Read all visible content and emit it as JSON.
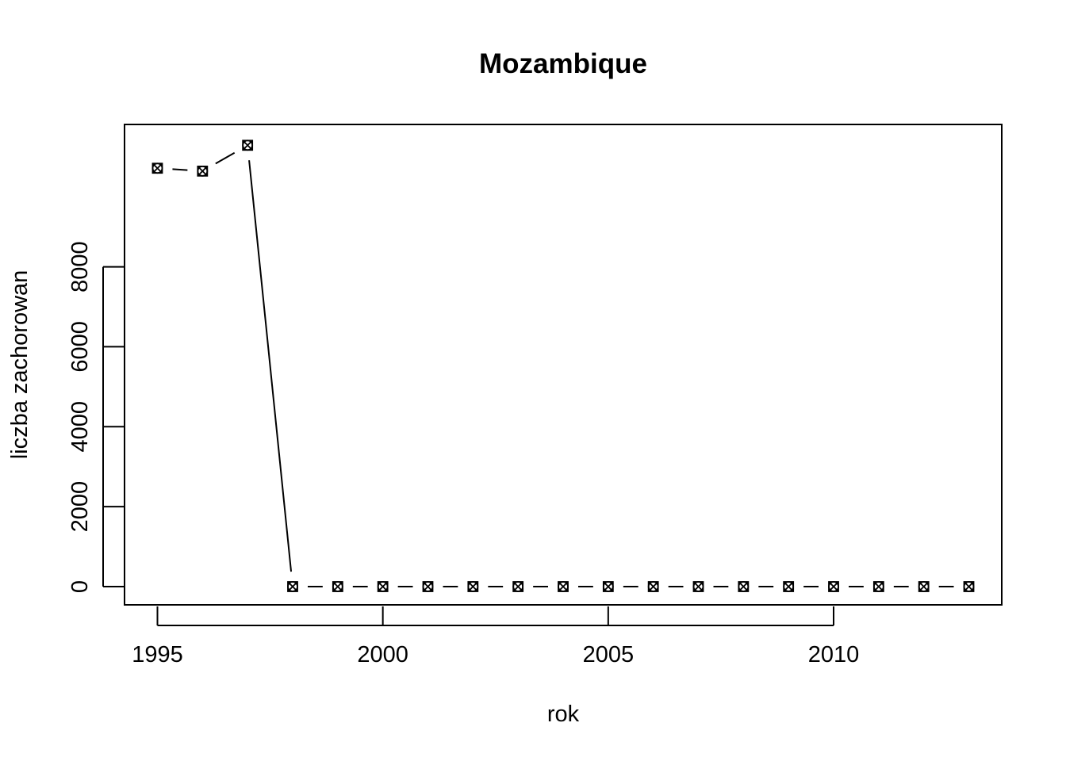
{
  "chart_data": {
    "type": "line",
    "title": "Mozambique",
    "xlabel": "rok",
    "ylabel": "liczba zachorowan",
    "xlim": [
      1994.27,
      2013.73
    ],
    "ylim": [
      -456,
      11561
    ],
    "x_ticks": [
      1995,
      2000,
      2005,
      2010
    ],
    "y_ticks": [
      0,
      2000,
      4000,
      6000,
      8000
    ],
    "grid": false,
    "legend": "none",
    "line_style": "b",
    "marker": "circled-cross-square",
    "series": [
      {
        "x": [
          1995,
          1996,
          1997,
          1998,
          1999,
          2000,
          2001,
          2002,
          2003,
          2004,
          2005,
          2006,
          2007,
          2008,
          2009,
          2010,
          2011,
          2012,
          2013
        ],
        "y": [
          10466,
          10394,
          11040,
          0,
          0,
          0,
          0,
          0,
          0,
          0,
          0,
          0,
          0,
          0,
          0,
          0,
          0,
          0,
          0
        ]
      }
    ],
    "colors": {
      "line": "#000000",
      "marker": "#000000",
      "background": "#ffffff"
    }
  }
}
